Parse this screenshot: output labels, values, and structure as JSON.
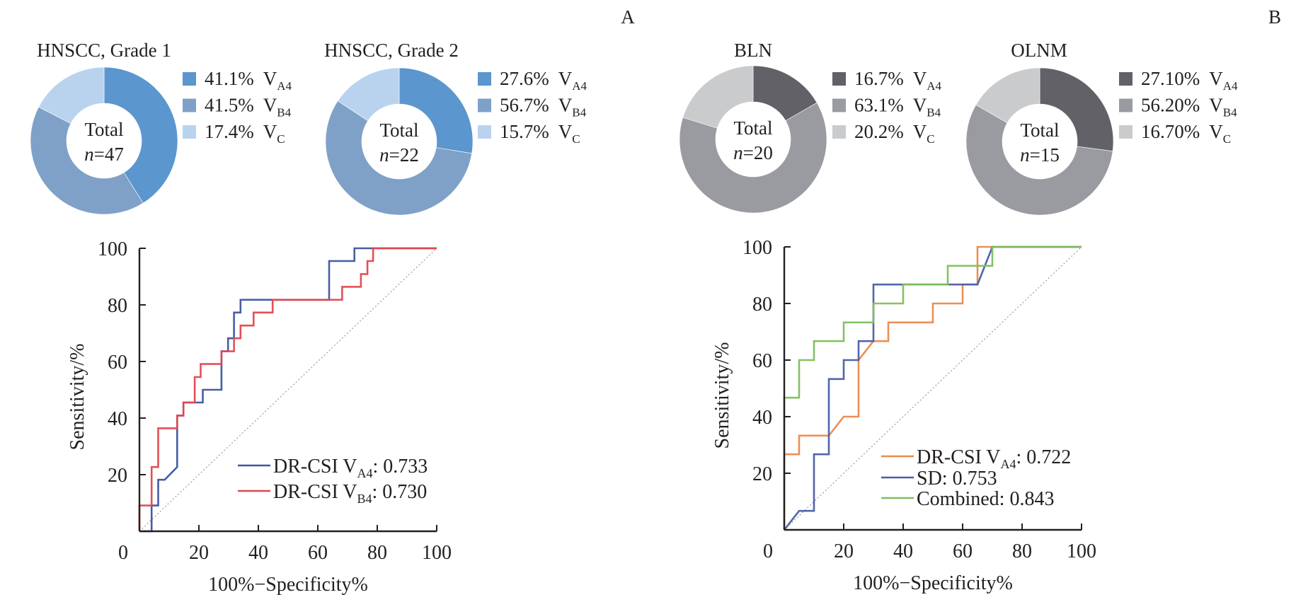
{
  "panel_labels": [
    "A",
    "B"
  ],
  "chart_data": [
    {
      "type": "pie",
      "panel": "A",
      "title": "HNSCC, Grade 1",
      "center_text": {
        "line1": "Total",
        "n_label": "n",
        "n_value": "=47"
      },
      "slices": [
        {
          "label": "V",
          "sub": "A4",
          "value": 41.1,
          "value_text": "41.1%",
          "color": "#5b96ce"
        },
        {
          "label": "V",
          "sub": "B4",
          "value": 41.5,
          "value_text": "41.5%",
          "color": "#7fa1c8"
        },
        {
          "label": "V",
          "sub": "C",
          "value": 17.4,
          "value_text": "17.4%",
          "color": "#b9d3ee"
        }
      ]
    },
    {
      "type": "pie",
      "panel": "A",
      "title": "HNSCC, Grade 2",
      "center_text": {
        "line1": "Total",
        "n_label": "n",
        "n_value": "=22"
      },
      "slices": [
        {
          "label": "V",
          "sub": "A4",
          "value": 27.6,
          "value_text": "27.6%",
          "color": "#5b96ce"
        },
        {
          "label": "V",
          "sub": "B4",
          "value": 56.7,
          "value_text": "56.7%",
          "color": "#7fa1c8"
        },
        {
          "label": "V",
          "sub": "C",
          "value": 15.7,
          "value_text": "15.7%",
          "color": "#b9d3ee"
        }
      ]
    },
    {
      "type": "pie",
      "panel": "B",
      "title": "BLN",
      "center_text": {
        "line1": "Total",
        "n_label": "n",
        "n_value": "=20"
      },
      "slices": [
        {
          "label": "V",
          "sub": "A4",
          "value": 16.7,
          "value_text": "16.7%",
          "color": "#626167"
        },
        {
          "label": "V",
          "sub": "B4",
          "value": 63.1,
          "value_text": "63.1%",
          "color": "#999ba0"
        },
        {
          "label": "V",
          "sub": "C",
          "value": 20.2,
          "value_text": "20.2%",
          "color": "#cacbcd"
        }
      ]
    },
    {
      "type": "pie",
      "panel": "B",
      "title": "OLNM",
      "center_text": {
        "line1": "Total",
        "n_label": "n",
        "n_value": "=15"
      },
      "slices": [
        {
          "label": "V",
          "sub": "A4",
          "value": 27.1,
          "value_text": "27.10%",
          "color": "#626167"
        },
        {
          "label": "V",
          "sub": "B4",
          "value": 56.2,
          "value_text": "56.20%",
          "color": "#999ba0"
        },
        {
          "label": "V",
          "sub": "C",
          "value": 16.7,
          "value_text": "16.70%",
          "color": "#cacbcd"
        }
      ]
    },
    {
      "type": "line",
      "panel": "A",
      "title": "",
      "xlabel": "100%−Specificity%",
      "ylabel": "Sensitivity/%",
      "xlim": [
        0,
        100
      ],
      "ylim": [
        0,
        100
      ],
      "xticks": [
        0,
        20,
        40,
        60,
        80,
        100
      ],
      "yticks": [
        20,
        40,
        60,
        80,
        100
      ],
      "origin_label": "0",
      "grid": false,
      "legend_position": "bottom-right",
      "reference_line": {
        "x": [
          0,
          100
        ],
        "y": [
          0,
          100
        ],
        "style": "dotted",
        "color": "#9a9a9a"
      },
      "series": [
        {
          "name": "DR-CSI V",
          "sub": "A4",
          "auc_text": ": 0.733",
          "color": "#3d559f",
          "x": [
            0,
            4.1,
            4.1,
            6.3,
            6.3,
            8.5,
            12.7,
            12.7,
            14.8,
            14.8,
            21.3,
            21.3,
            27.6,
            27.6,
            29.8,
            29.8,
            31.8,
            31.8,
            34.0,
            34.0,
            63.8,
            63.8,
            72.3,
            72.3,
            100
          ],
          "y": [
            0,
            0,
            9.1,
            9.1,
            18.2,
            18.2,
            22.7,
            40.9,
            40.9,
            45.5,
            45.5,
            50.0,
            50.0,
            63.6,
            63.6,
            68.2,
            68.2,
            77.3,
            77.3,
            81.8,
            81.8,
            95.5,
            95.5,
            100,
            100
          ]
        },
        {
          "name": "DR-CSI V",
          "sub": "B4",
          "auc_text": ": 0.730",
          "color": "#e2474f",
          "x": [
            0,
            0,
            4.1,
            4.1,
            6.3,
            6.3,
            12.7,
            12.7,
            14.8,
            14.8,
            18.6,
            18.6,
            20.6,
            20.6,
            27.6,
            27.6,
            31.8,
            31.8,
            34.0,
            34.0,
            38.4,
            38.4,
            44.8,
            44.8,
            68.2,
            68.2,
            74.5,
            74.5,
            76.7,
            76.7,
            78.6,
            78.6,
            100
          ],
          "y": [
            0,
            9.1,
            9.1,
            22.7,
            22.7,
            36.4,
            36.4,
            40.9,
            40.9,
            45.5,
            45.5,
            54.5,
            54.5,
            59.1,
            59.1,
            63.6,
            63.6,
            68.2,
            68.2,
            72.7,
            72.7,
            77.3,
            77.3,
            81.8,
            81.8,
            86.4,
            86.4,
            90.9,
            90.9,
            95.5,
            95.5,
            100,
            100
          ]
        }
      ]
    },
    {
      "type": "line",
      "panel": "B",
      "title": "",
      "xlabel": "100%−Specificity%",
      "ylabel": "Sensitivity/%",
      "xlim": [
        0,
        100
      ],
      "ylim": [
        0,
        100
      ],
      "xticks": [
        0,
        20,
        40,
        60,
        80,
        100
      ],
      "yticks": [
        20,
        40,
        60,
        80,
        100
      ],
      "origin_label": "0",
      "grid": false,
      "legend_position": "bottom-right",
      "reference_line": {
        "x": [
          0,
          100
        ],
        "y": [
          0,
          100
        ],
        "style": "dotted",
        "color": "#9a9a9a"
      },
      "series": [
        {
          "name": "DR-CSI V",
          "sub": "A4",
          "auc_text": ": 0.722",
          "color": "#ea8a4a",
          "x": [
            0,
            0,
            5,
            5,
            15,
            20,
            25,
            25,
            30,
            35,
            35,
            50,
            50,
            60,
            60,
            65,
            65,
            70,
            100
          ],
          "y": [
            0,
            26.7,
            26.7,
            33.3,
            33.3,
            40,
            40,
            60,
            66.7,
            66.7,
            73.3,
            73.3,
            80,
            80,
            86.7,
            86.7,
            100,
            100,
            100
          ]
        },
        {
          "name": "SD",
          "sub": "",
          "auc_text": ": 0.753",
          "color": "#4a5da8",
          "x": [
            0,
            5,
            10,
            10,
            15,
            15,
            20,
            20,
            25,
            25,
            30,
            30,
            65,
            70,
            100
          ],
          "y": [
            0,
            6.7,
            6.7,
            26.7,
            26.7,
            53.3,
            53.3,
            60,
            60,
            66.7,
            66.7,
            86.7,
            86.7,
            100,
            100
          ]
        },
        {
          "name": "Combined",
          "sub": "",
          "auc_text": ": 0.843",
          "color": "#7dbf5e",
          "x": [
            0,
            0,
            5,
            5,
            10,
            10,
            20,
            20,
            30,
            30,
            40,
            40,
            55,
            55,
            70,
            70,
            100
          ],
          "y": [
            0,
            46.7,
            46.7,
            60,
            60,
            66.7,
            66.7,
            73.3,
            73.3,
            80,
            80,
            86.7,
            86.7,
            93.3,
            93.3,
            100,
            100
          ]
        }
      ]
    }
  ]
}
